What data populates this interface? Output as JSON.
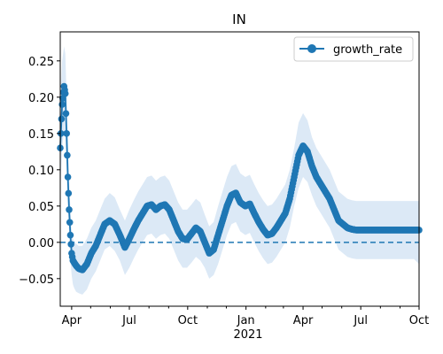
{
  "chart_data": {
    "type": "line",
    "title": "IN",
    "xlabel": "",
    "ylabel": "",
    "x_tick_labels": [
      "Apr",
      "Jul",
      "Oct",
      "Jan",
      "Apr",
      "Jul",
      "Oct"
    ],
    "x_year_label": "2021",
    "y_ticks": [
      -0.05,
      0.0,
      0.05,
      0.1,
      0.15,
      0.2,
      0.25
    ],
    "y_tick_labels": [
      "−0.05",
      "0.00",
      "0.05",
      "0.10",
      "0.15",
      "0.20",
      "0.25"
    ],
    "ylim": [
      -0.088,
      0.29
    ],
    "xlim": [
      "2020-03-14",
      "2021-10-01"
    ],
    "grid": false,
    "legend_position": "top-right",
    "colors": {
      "line": "#1f77b4",
      "band": "#dce9f6",
      "zero_line": "#1f77b4"
    },
    "reference_line": {
      "y": 0,
      "style": "dashed"
    },
    "series": [
      {
        "name": "growth_rate",
        "x": [
          "2020-03-14",
          "2020-03-17",
          "2020-03-20",
          "2020-03-22",
          "2020-03-24",
          "2020-03-26",
          "2020-03-28",
          "2020-03-30",
          "2020-04-01",
          "2020-04-03",
          "2020-04-05",
          "2020-04-08",
          "2020-04-12",
          "2020-04-18",
          "2020-04-25",
          "2020-05-02",
          "2020-05-09",
          "2020-05-16",
          "2020-05-23",
          "2020-05-31",
          "2020-06-08",
          "2020-06-16",
          "2020-06-24",
          "2020-07-01",
          "2020-07-08",
          "2020-07-15",
          "2020-07-22",
          "2020-07-29",
          "2020-08-05",
          "2020-08-12",
          "2020-08-19",
          "2020-08-26",
          "2020-09-02",
          "2020-09-09",
          "2020-09-16",
          "2020-09-23",
          "2020-09-30",
          "2020-10-07",
          "2020-10-14",
          "2020-10-21",
          "2020-10-28",
          "2020-11-04",
          "2020-11-11",
          "2020-11-18",
          "2020-11-25",
          "2020-12-02",
          "2020-12-09",
          "2020-12-16",
          "2020-12-23",
          "2020-12-31",
          "2021-01-07",
          "2021-01-14",
          "2021-01-21",
          "2021-01-28",
          "2021-02-04",
          "2021-02-11",
          "2021-02-18",
          "2021-02-25",
          "2021-03-04",
          "2021-03-11",
          "2021-03-18",
          "2021-03-25",
          "2021-04-01",
          "2021-04-08",
          "2021-04-15",
          "2021-04-22",
          "2021-04-29",
          "2021-05-06",
          "2021-05-13",
          "2021-05-20",
          "2021-05-27",
          "2021-06-03",
          "2021-06-10",
          "2021-06-17",
          "2021-06-24",
          "2021-07-01",
          "2021-07-08",
          "2021-07-15",
          "2021-07-22",
          "2021-07-29",
          "2021-08-05",
          "2021-08-12",
          "2021-08-19",
          "2021-08-26",
          "2021-09-02",
          "2021-09-09",
          "2021-09-16",
          "2021-09-23",
          "2021-10-01"
        ],
        "values": [
          0.13,
          0.19,
          0.215,
          0.205,
          0.15,
          0.09,
          0.045,
          0.01,
          -0.015,
          -0.025,
          -0.028,
          -0.032,
          -0.036,
          -0.038,
          -0.03,
          -0.015,
          -0.005,
          0.01,
          0.025,
          0.03,
          0.025,
          0.01,
          -0.007,
          0.005,
          0.018,
          0.03,
          0.04,
          0.05,
          0.052,
          0.045,
          0.05,
          0.052,
          0.045,
          0.03,
          0.015,
          0.005,
          0.004,
          0.012,
          0.02,
          0.015,
          0.0,
          -0.015,
          -0.01,
          0.01,
          0.03,
          0.05,
          0.065,
          0.068,
          0.055,
          0.05,
          0.053,
          0.04,
          0.028,
          0.018,
          0.01,
          0.012,
          0.02,
          0.03,
          0.04,
          0.06,
          0.09,
          0.12,
          0.133,
          0.125,
          0.105,
          0.09,
          0.08,
          0.07,
          0.06,
          0.045,
          0.03,
          0.025,
          0.02,
          0.018,
          0.017,
          0.017,
          0.017,
          0.017,
          0.017,
          0.017,
          0.017,
          0.017,
          0.017,
          0.017,
          0.017,
          0.017,
          0.017,
          0.017,
          0.017
        ],
        "lower": [
          0.07,
          0.13,
          0.155,
          0.145,
          0.1,
          0.05,
          0.01,
          -0.025,
          -0.045,
          -0.058,
          -0.063,
          -0.068,
          -0.07,
          -0.072,
          -0.065,
          -0.05,
          -0.04,
          -0.025,
          -0.01,
          -0.005,
          -0.012,
          -0.025,
          -0.045,
          -0.035,
          -0.022,
          -0.01,
          0.0,
          0.01,
          0.012,
          0.005,
          0.01,
          0.012,
          0.005,
          -0.01,
          -0.025,
          -0.035,
          -0.035,
          -0.028,
          -0.02,
          -0.025,
          -0.035,
          -0.05,
          -0.045,
          -0.03,
          -0.01,
          0.01,
          0.025,
          0.028,
          0.015,
          0.01,
          0.013,
          0.0,
          -0.012,
          -0.022,
          -0.03,
          -0.028,
          -0.02,
          -0.01,
          0.0,
          0.02,
          0.05,
          0.075,
          0.09,
          0.083,
          0.065,
          0.05,
          0.04,
          0.03,
          0.02,
          0.005,
          -0.01,
          -0.015,
          -0.02,
          -0.022,
          -0.023,
          -0.023,
          -0.023,
          -0.023,
          -0.023,
          -0.023,
          -0.023,
          -0.023,
          -0.023,
          -0.023,
          -0.023,
          -0.023,
          -0.023,
          -0.023,
          -0.03
        ],
        "upper": [
          0.19,
          0.25,
          0.27,
          0.26,
          0.2,
          0.135,
          0.085,
          0.045,
          0.015,
          0.005,
          0.002,
          -0.002,
          -0.005,
          -0.005,
          0.005,
          0.02,
          0.03,
          0.045,
          0.06,
          0.068,
          0.062,
          0.045,
          0.03,
          0.045,
          0.058,
          0.07,
          0.08,
          0.09,
          0.092,
          0.085,
          0.09,
          0.092,
          0.085,
          0.07,
          0.055,
          0.045,
          0.045,
          0.052,
          0.06,
          0.055,
          0.038,
          0.022,
          0.028,
          0.05,
          0.07,
          0.09,
          0.105,
          0.108,
          0.095,
          0.09,
          0.093,
          0.08,
          0.068,
          0.058,
          0.05,
          0.052,
          0.06,
          0.07,
          0.08,
          0.1,
          0.13,
          0.165,
          0.178,
          0.168,
          0.145,
          0.13,
          0.12,
          0.11,
          0.1,
          0.085,
          0.07,
          0.065,
          0.06,
          0.058,
          0.057,
          0.057,
          0.057,
          0.057,
          0.057,
          0.057,
          0.057,
          0.057,
          0.057,
          0.057,
          0.057,
          0.057,
          0.057,
          0.057,
          0.057
        ]
      }
    ]
  }
}
